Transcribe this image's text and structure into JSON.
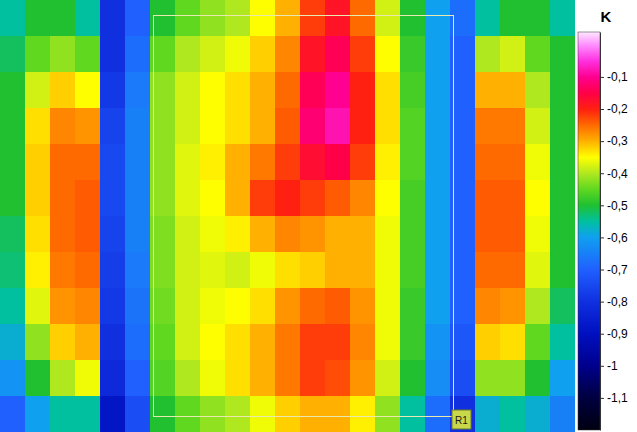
{
  "chart_data": {
    "type": "heatmap",
    "tick_labels": false,
    "colorbar_title": "K",
    "annotations": [
      "R1"
    ],
    "clim": [
      -1.2,
      0.04
    ],
    "cticks": [
      {
        "value": -0.1,
        "label": "-0,1"
      },
      {
        "value": -0.2,
        "label": "-0,2"
      },
      {
        "value": -0.3,
        "label": "-0,3"
      },
      {
        "value": -0.4,
        "label": "-0,4"
      },
      {
        "value": -0.5,
        "label": "-0,5"
      },
      {
        "value": -0.6,
        "label": "-0,6"
      },
      {
        "value": -0.7,
        "label": "-0,7"
      },
      {
        "value": -0.8,
        "label": "-0,8"
      },
      {
        "value": -0.9,
        "label": "-0,9"
      },
      -1,
      {
        "value": -1.1,
        "label": "-1,1"
      }
    ],
    "values": [
      [
        -0.55,
        -0.5,
        -0.5,
        -0.55,
        -0.8,
        -0.7,
        -0.5,
        -0.45,
        -0.42,
        -0.4,
        -0.35,
        -0.3,
        -0.22,
        -0.18,
        -0.25,
        -0.38,
        -0.5,
        -0.6,
        -0.68,
        -0.55,
        -0.5,
        -0.5,
        -0.55
      ],
      [
        -0.52,
        -0.45,
        -0.42,
        -0.45,
        -0.8,
        -0.68,
        -0.45,
        -0.4,
        -0.38,
        -0.36,
        -0.32,
        -0.27,
        -0.18,
        -0.14,
        -0.22,
        -0.35,
        -0.48,
        -0.6,
        -0.7,
        -0.4,
        -0.38,
        -0.45,
        -0.5
      ],
      [
        -0.5,
        -0.38,
        -0.32,
        -0.35,
        -0.78,
        -0.66,
        -0.42,
        -0.38,
        -0.35,
        -0.33,
        -0.3,
        -0.25,
        -0.14,
        -0.1,
        -0.2,
        -0.33,
        -0.47,
        -0.6,
        -0.7,
        -0.3,
        -0.3,
        -0.4,
        -0.5
      ],
      [
        -0.5,
        -0.33,
        -0.27,
        -0.28,
        -0.76,
        -0.65,
        -0.42,
        -0.38,
        -0.35,
        -0.33,
        -0.3,
        -0.24,
        -0.12,
        -0.08,
        -0.2,
        -0.33,
        -0.46,
        -0.6,
        -0.7,
        -0.26,
        -0.26,
        -0.38,
        -0.5
      ],
      [
        -0.5,
        -0.32,
        -0.25,
        -0.25,
        -0.75,
        -0.65,
        -0.42,
        -0.37,
        -0.34,
        -0.3,
        -0.26,
        -0.22,
        -0.17,
        -0.15,
        -0.22,
        -0.34,
        -0.46,
        -0.6,
        -0.7,
        -0.25,
        -0.25,
        -0.36,
        -0.5
      ],
      [
        -0.5,
        -0.32,
        -0.25,
        -0.24,
        -0.75,
        -0.65,
        -0.42,
        -0.37,
        -0.35,
        -0.3,
        -0.22,
        -0.2,
        -0.22,
        -0.24,
        -0.27,
        -0.35,
        -0.47,
        -0.6,
        -0.7,
        -0.24,
        -0.24,
        -0.35,
        -0.5
      ],
      [
        -0.52,
        -0.33,
        -0.25,
        -0.24,
        -0.76,
        -0.65,
        -0.43,
        -0.38,
        -0.36,
        -0.34,
        -0.3,
        -0.27,
        -0.28,
        -0.3,
        -0.3,
        -0.36,
        -0.47,
        -0.6,
        -0.7,
        -0.24,
        -0.24,
        -0.36,
        -0.5
      ],
      [
        -0.53,
        -0.34,
        -0.26,
        -0.25,
        -0.77,
        -0.66,
        -0.43,
        -0.38,
        -0.37,
        -0.38,
        -0.36,
        -0.33,
        -0.32,
        -0.3,
        -0.3,
        -0.36,
        -0.47,
        -0.6,
        -0.7,
        -0.25,
        -0.25,
        -0.37,
        -0.5
      ],
      [
        -0.55,
        -0.37,
        -0.28,
        -0.27,
        -0.78,
        -0.67,
        -0.44,
        -0.38,
        -0.36,
        -0.35,
        -0.33,
        -0.28,
        -0.25,
        -0.24,
        -0.28,
        -0.36,
        -0.48,
        -0.6,
        -0.7,
        -0.27,
        -0.28,
        -0.4,
        -0.52
      ],
      [
        -0.58,
        -0.42,
        -0.32,
        -0.3,
        -0.8,
        -0.68,
        -0.45,
        -0.38,
        -0.35,
        -0.33,
        -0.3,
        -0.26,
        -0.22,
        -0.22,
        -0.27,
        -0.36,
        -0.48,
        -0.62,
        -0.72,
        -0.32,
        -0.33,
        -0.45,
        -0.55
      ],
      [
        -0.62,
        -0.5,
        -0.4,
        -0.36,
        -0.82,
        -0.7,
        -0.46,
        -0.4,
        -0.36,
        -0.33,
        -0.3,
        -0.26,
        -0.22,
        -0.23,
        -0.28,
        -0.38,
        -0.5,
        -0.63,
        -0.74,
        -0.42,
        -0.42,
        -0.5,
        -0.6
      ],
      [
        -0.7,
        -0.6,
        -0.55,
        -0.55,
        -0.88,
        -0.74,
        -0.5,
        -0.45,
        -0.42,
        -0.4,
        -0.36,
        -0.32,
        -0.3,
        -0.3,
        -0.34,
        -0.42,
        -0.55,
        -0.68,
        -0.8,
        -0.58,
        -0.55,
        -0.58,
        -0.65
      ]
    ]
  }
}
